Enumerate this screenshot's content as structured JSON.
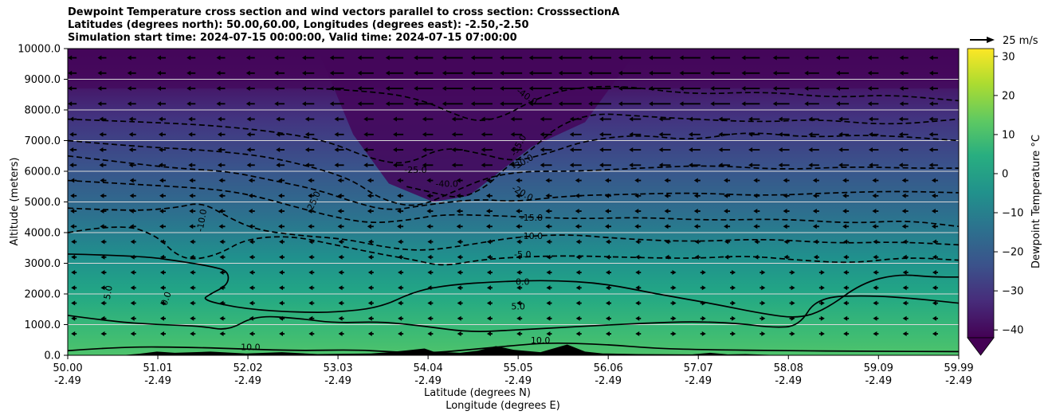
{
  "titles": {
    "line1": "Dewpoint Temperature cross section and wind vectors parallel to cross section: CrosssectionA",
    "line2": "Latitudes (degrees north): 50.00,60.00, Longitudes (degrees east): -2.50,-2.50",
    "line3": "Simulation start time: 2024-07-15 00:00:00, Valid time: 2024-07-15 07:00:00"
  },
  "chart_data": {
    "type": "heatmap",
    "xlabel_lat": "Latitude (degrees N)",
    "xlabel_lon": "Longitude (degrees E)",
    "ylabel": "Altitude (meters)",
    "x_ticks_lat": [
      "50.00",
      "51.01",
      "52.02",
      "53.03",
      "54.04",
      "55.05",
      "56.06",
      "57.07",
      "58.08",
      "59.09",
      "59.99"
    ],
    "x_ticks_lon": [
      "-2.49",
      "-2.49",
      "-2.49",
      "-2.49",
      "-2.49",
      "-2.49",
      "-2.49",
      "-2.49",
      "-2.49",
      "-2.49",
      "-2.49"
    ],
    "x_values": [
      50.0,
      51.01,
      52.02,
      53.03,
      54.04,
      55.05,
      56.06,
      57.07,
      58.08,
      59.09,
      59.99
    ],
    "xlim": [
      50.0,
      59.99
    ],
    "y_ticks": [
      "0.0",
      "1000.0",
      "2000.0",
      "3000.0",
      "4000.0",
      "5000.0",
      "6000.0",
      "7000.0",
      "8000.0",
      "9000.0",
      "10000.0"
    ],
    "y_values": [
      0,
      1000,
      2000,
      3000,
      4000,
      5000,
      6000,
      7000,
      8000,
      9000,
      10000
    ],
    "ylim": [
      0,
      10000
    ],
    "grid": "horizontal",
    "colorbar": {
      "label": "Dewpoint Temperature °C",
      "ticks": [
        "30",
        "20",
        "10",
        "0",
        "−10",
        "−20",
        "−30",
        "−40"
      ],
      "tick_values": [
        30,
        20,
        10,
        0,
        -10,
        -20,
        -30,
        -40
      ],
      "range": [
        -42,
        32
      ],
      "extend": "min",
      "colormap": "viridis"
    },
    "quiver_key": {
      "label": "25 m/s",
      "speed": 25
    },
    "contour_levels": [
      {
        "level": -40,
        "label": "-40.0",
        "style": "dashed"
      },
      {
        "level": -35,
        "label": "-35.0",
        "style": "dashed"
      },
      {
        "level": -30,
        "label": "-30.0",
        "style": "dashed"
      },
      {
        "level": -25,
        "label": "-25.0",
        "style": "dashed"
      },
      {
        "level": -20,
        "label": "-20.0",
        "style": "dashed"
      },
      {
        "level": -15,
        "label": "-15.0",
        "style": "dashed"
      },
      {
        "level": -10,
        "label": "-10.0",
        "style": "dashed"
      },
      {
        "level": -5,
        "label": "-5.0",
        "style": "dashed"
      },
      {
        "level": 0,
        "label": "0.0",
        "style": "solid"
      },
      {
        "level": 5,
        "label": "5.0",
        "style": "solid"
      },
      {
        "level": 10,
        "label": "10.0",
        "style": "solid"
      }
    ],
    "contour_lines": [
      {
        "level": 10,
        "dashed": false,
        "points": [
          [
            50.0,
            150
          ],
          [
            50.6,
            280
          ],
          [
            51.4,
            260
          ],
          [
            52.0,
            200
          ],
          [
            52.6,
            150
          ],
          [
            53.2,
            180
          ],
          [
            53.6,
            120
          ],
          [
            54.0,
            60
          ],
          [
            54.5,
            180
          ],
          [
            55.0,
            320
          ],
          [
            55.4,
            410
          ],
          [
            56.0,
            360
          ],
          [
            56.6,
            220
          ],
          [
            57.2,
            180
          ],
          [
            58.0,
            150
          ],
          [
            59.0,
            130
          ],
          [
            59.99,
            120
          ]
        ]
      },
      {
        "level": 5,
        "dashed": false,
        "points": [
          [
            50.0,
            1300
          ],
          [
            50.5,
            1100
          ],
          [
            51.0,
            1000
          ],
          [
            51.5,
            950
          ],
          [
            51.8,
            800
          ],
          [
            52.1,
            1300
          ],
          [
            52.6,
            1200
          ],
          [
            53.0,
            1050
          ],
          [
            53.5,
            1100
          ],
          [
            54.0,
            950
          ],
          [
            54.5,
            750
          ],
          [
            55.0,
            820
          ],
          [
            55.5,
            900
          ],
          [
            56.0,
            980
          ],
          [
            56.5,
            1050
          ],
          [
            57.0,
            1100
          ],
          [
            57.5,
            1050
          ],
          [
            57.9,
            900
          ],
          [
            58.2,
            950
          ],
          [
            58.4,
            1900
          ],
          [
            59.0,
            1950
          ],
          [
            59.5,
            1850
          ],
          [
            59.99,
            1700
          ]
        ]
      },
      {
        "level": 0,
        "dashed": false,
        "points": [
          [
            50.0,
            3300
          ],
          [
            50.8,
            3250
          ],
          [
            51.3,
            3050
          ],
          [
            51.6,
            2900
          ],
          [
            51.8,
            2750
          ],
          [
            51.8,
            2300
          ],
          [
            51.6,
            2000
          ],
          [
            51.5,
            1800
          ],
          [
            52.0,
            1500
          ],
          [
            52.6,
            1400
          ],
          [
            53.0,
            1400
          ],
          [
            53.5,
            1550
          ],
          [
            53.9,
            2100
          ],
          [
            54.3,
            2300
          ],
          [
            54.8,
            2400
          ],
          [
            55.4,
            2450
          ],
          [
            56.0,
            2350
          ],
          [
            56.6,
            2000
          ],
          [
            57.2,
            1700
          ],
          [
            57.8,
            1350
          ],
          [
            58.2,
            1200
          ],
          [
            58.5,
            1500
          ],
          [
            58.9,
            2350
          ],
          [
            59.3,
            2650
          ],
          [
            59.7,
            2550
          ],
          [
            59.99,
            2550
          ]
        ]
      },
      {
        "level": -5,
        "dashed": true,
        "points": [
          [
            50.0,
            4000
          ],
          [
            50.6,
            4300
          ],
          [
            51.0,
            3900
          ],
          [
            51.2,
            3300
          ],
          [
            51.4,
            3100
          ],
          [
            51.7,
            3300
          ],
          [
            52.0,
            3800
          ],
          [
            52.5,
            3900
          ],
          [
            53.0,
            3600
          ],
          [
            53.5,
            3300
          ],
          [
            53.9,
            3100
          ],
          [
            54.2,
            2900
          ],
          [
            54.6,
            3100
          ],
          [
            55.0,
            3200
          ],
          [
            55.6,
            3250
          ],
          [
            56.2,
            3200
          ],
          [
            57.0,
            3150
          ],
          [
            57.6,
            3250
          ],
          [
            58.2,
            3100
          ],
          [
            58.8,
            3000
          ],
          [
            59.4,
            3200
          ],
          [
            59.99,
            3100
          ]
        ]
      },
      {
        "level": -10,
        "dashed": true,
        "points": [
          [
            50.0,
            4800
          ],
          [
            50.7,
            4700
          ],
          [
            51.2,
            4800
          ],
          [
            51.5,
            5000
          ],
          [
            51.8,
            4500
          ],
          [
            52.1,
            4100
          ],
          [
            52.6,
            3900
          ],
          [
            53.1,
            3800
          ],
          [
            53.6,
            3500
          ],
          [
            54.0,
            3400
          ],
          [
            54.5,
            3600
          ],
          [
            55.0,
            3850
          ],
          [
            55.6,
            3950
          ],
          [
            56.2,
            3800
          ],
          [
            57.0,
            3700
          ],
          [
            57.8,
            3800
          ],
          [
            58.6,
            3650
          ],
          [
            59.3,
            3700
          ],
          [
            59.99,
            3600
          ]
        ]
      },
      {
        "level": -15,
        "dashed": true,
        "points": [
          [
            50.0,
            5700
          ],
          [
            50.6,
            5600
          ],
          [
            51.2,
            5500
          ],
          [
            51.7,
            5400
          ],
          [
            52.1,
            5200
          ],
          [
            52.6,
            4800
          ],
          [
            53.0,
            4500
          ],
          [
            53.4,
            4300
          ],
          [
            53.8,
            4400
          ],
          [
            54.2,
            4600
          ],
          [
            54.8,
            4550
          ],
          [
            55.2,
            4500
          ],
          [
            55.8,
            4450
          ],
          [
            56.4,
            4500
          ],
          [
            57.2,
            4400
          ],
          [
            58.0,
            4450
          ],
          [
            58.8,
            4300
          ],
          [
            59.4,
            4400
          ],
          [
            59.99,
            4200
          ]
        ]
      },
      {
        "level": -20,
        "dashed": true,
        "points": [
          [
            50.0,
            6500
          ],
          [
            50.6,
            6300
          ],
          [
            51.2,
            6100
          ],
          [
            51.8,
            6000
          ],
          [
            52.3,
            5700
          ],
          [
            52.8,
            5400
          ],
          [
            53.2,
            5000
          ],
          [
            53.6,
            4700
          ],
          [
            54.0,
            4900
          ],
          [
            54.6,
            5100
          ],
          [
            55.0,
            5000
          ],
          [
            55.6,
            5200
          ],
          [
            56.3,
            5250
          ],
          [
            57.0,
            5300
          ],
          [
            57.8,
            5200
          ],
          [
            58.6,
            5300
          ],
          [
            59.3,
            5350
          ],
          [
            59.99,
            5300
          ]
        ]
      },
      {
        "level": -25,
        "dashed": true,
        "points": [
          [
            50.0,
            7000
          ],
          [
            50.8,
            6800
          ],
          [
            51.5,
            6700
          ],
          [
            52.2,
            6500
          ],
          [
            52.8,
            6100
          ],
          [
            53.2,
            5700
          ],
          [
            53.5,
            5100
          ],
          [
            53.9,
            4800
          ],
          [
            54.3,
            5300
          ],
          [
            54.7,
            5800
          ],
          [
            55.1,
            6000
          ],
          [
            55.7,
            6000
          ],
          [
            56.4,
            6100
          ],
          [
            57.2,
            6200
          ],
          [
            58.0,
            6050
          ],
          [
            58.8,
            6150
          ],
          [
            59.5,
            6100
          ],
          [
            59.99,
            6100
          ]
        ]
      },
      {
        "level": -30,
        "dashed": true,
        "points": [
          [
            50.0,
            7700
          ],
          [
            50.9,
            7600
          ],
          [
            51.6,
            7500
          ],
          [
            52.3,
            7300
          ],
          [
            52.9,
            7000
          ],
          [
            53.4,
            6400
          ],
          [
            53.8,
            6200
          ],
          [
            54.2,
            6800
          ],
          [
            54.6,
            6600
          ],
          [
            55.0,
            6300
          ],
          [
            55.4,
            6600
          ],
          [
            55.8,
            7000
          ],
          [
            56.4,
            7200
          ],
          [
            57.0,
            7000
          ],
          [
            57.6,
            7300
          ],
          [
            58.3,
            7100
          ],
          [
            59.0,
            7200
          ],
          [
            59.99,
            7000
          ]
        ]
      },
      {
        "level": -35,
        "dashed": true,
        "points": [
          [
            53.8,
            5500
          ],
          [
            54.1,
            5300
          ],
          [
            54.4,
            5100
          ],
          [
            54.7,
            5500
          ],
          [
            54.9,
            6100
          ],
          [
            55.2,
            6700
          ],
          [
            55.5,
            7500
          ],
          [
            55.9,
            7900
          ],
          [
            56.4,
            7800
          ],
          [
            57.0,
            7700
          ],
          [
            57.8,
            7600
          ],
          [
            58.4,
            7700
          ],
          [
            59.2,
            7500
          ],
          [
            59.99,
            7700
          ]
        ]
      },
      {
        "level": -40,
        "dashed": true,
        "points": [
          [
            52.8,
            8700
          ],
          [
            53.5,
            8600
          ],
          [
            54.0,
            8300
          ],
          [
            54.3,
            7900
          ],
          [
            54.6,
            7600
          ],
          [
            54.9,
            7800
          ],
          [
            55.2,
            8300
          ],
          [
            55.6,
            8700
          ],
          [
            56.2,
            8800
          ],
          [
            57.0,
            8500
          ],
          [
            57.8,
            8600
          ],
          [
            58.6,
            8400
          ],
          [
            59.2,
            8500
          ],
          [
            59.99,
            8300
          ]
        ]
      }
    ],
    "contour_label_positions": [
      {
        "text": "-40.0",
        "x": 55.15,
        "y": 8450,
        "rotate": 35
      },
      {
        "text": "-40.0",
        "x": 54.25,
        "y": 5600,
        "rotate": 0
      },
      {
        "text": "-35.0",
        "x": 55.05,
        "y": 6850,
        "rotate": -60
      },
      {
        "text": "-30.0",
        "x": 55.1,
        "y": 6300,
        "rotate": -30
      },
      {
        "text": "-25.0",
        "x": 53.9,
        "y": 6050,
        "rotate": 0
      },
      {
        "text": "-25.0",
        "x": 52.75,
        "y": 5000,
        "rotate": -65
      },
      {
        "text": "-20.0",
        "x": 55.1,
        "y": 5300,
        "rotate": 30
      },
      {
        "text": "-15.0",
        "x": 55.2,
        "y": 4500,
        "rotate": 0
      },
      {
        "text": "-10.0",
        "x": 55.2,
        "y": 3900,
        "rotate": 0
      },
      {
        "text": "-10.0",
        "x": 51.5,
        "y": 4400,
        "rotate": -80
      },
      {
        "text": "-5.0",
        "x": 55.1,
        "y": 3300,
        "rotate": 0
      },
      {
        "text": "0.0",
        "x": 55.1,
        "y": 2400,
        "rotate": 0
      },
      {
        "text": "0.0",
        "x": 51.1,
        "y": 1850,
        "rotate": -70
      },
      {
        "text": "5.0",
        "x": 55.05,
        "y": 1600,
        "rotate": 0
      },
      {
        "text": "5.0",
        "x": 50.45,
        "y": 2050,
        "rotate": -80
      },
      {
        "text": "10.0",
        "x": 55.3,
        "y": 500,
        "rotate": 0
      },
      {
        "text": "10.0",
        "x": 52.05,
        "y": 270,
        "rotate": 0
      }
    ],
    "terrain": [
      [
        50.0,
        0
      ],
      [
        50.6,
        0
      ],
      [
        50.8,
        50
      ],
      [
        51.0,
        120
      ],
      [
        51.2,
        80
      ],
      [
        51.6,
        120
      ],
      [
        52.0,
        60
      ],
      [
        52.4,
        100
      ],
      [
        52.8,
        40
      ],
      [
        53.4,
        60
      ],
      [
        53.6,
        100
      ],
      [
        54.0,
        220
      ],
      [
        54.1,
        120
      ],
      [
        54.4,
        80
      ],
      [
        54.6,
        150
      ],
      [
        54.8,
        300
      ],
      [
        55.0,
        180
      ],
      [
        55.3,
        100
      ],
      [
        55.6,
        350
      ],
      [
        55.8,
        120
      ],
      [
        56.0,
        60
      ],
      [
        56.4,
        40
      ],
      [
        57.0,
        30
      ],
      [
        57.2,
        80
      ],
      [
        57.4,
        30
      ],
      [
        57.6,
        40
      ],
      [
        58.0,
        0
      ],
      [
        59.99,
        0
      ]
    ]
  }
}
